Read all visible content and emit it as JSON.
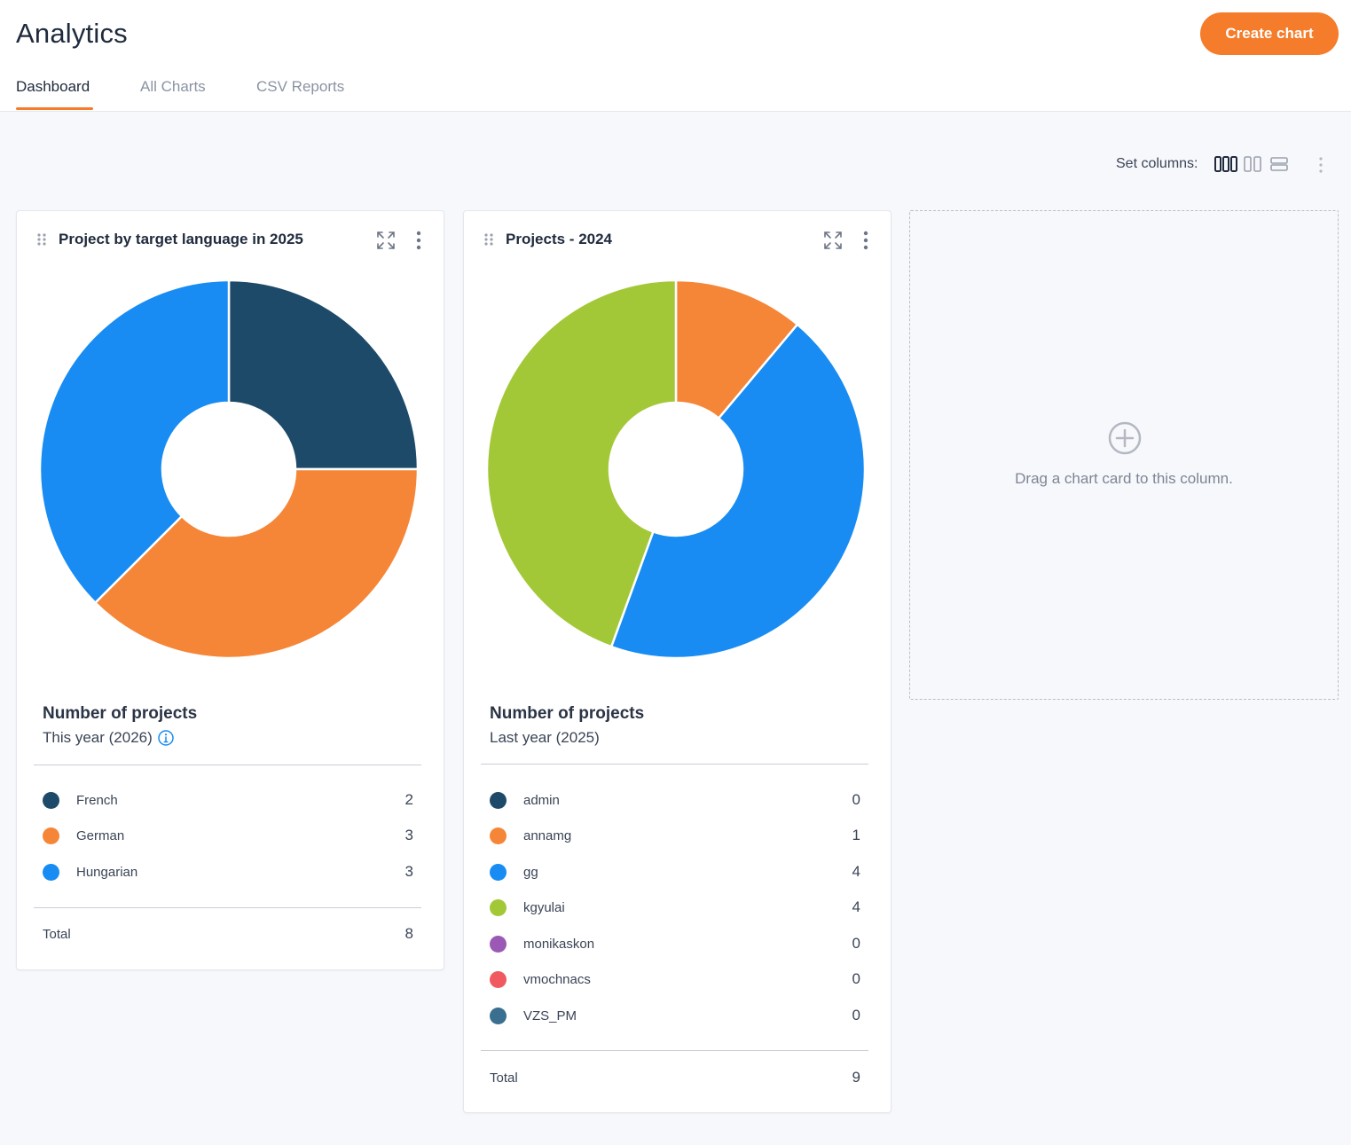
{
  "header": {
    "title": "Analytics",
    "create_button": "Create chart",
    "tabs": [
      {
        "label": "Dashboard",
        "active": true
      },
      {
        "label": "All Charts",
        "active": false
      },
      {
        "label": "CSV Reports",
        "active": false
      }
    ]
  },
  "toolbar": {
    "set_columns_label": "Set columns:",
    "column_options": [
      "three-columns-icon",
      "two-columns-icon",
      "one-column-icon"
    ],
    "selected_columns": 3
  },
  "colors": {
    "accent": "#f47c2a",
    "navy": "#1d4a69",
    "orange": "#f58638",
    "blue": "#188cf2",
    "green": "#a3c837",
    "purple": "#9b59b6",
    "red": "#f0595f",
    "teal": "#3a6f8f"
  },
  "cards": [
    {
      "title": "Project by target language in 2025",
      "summary_title": "Number of projects",
      "summary_subtitle": "This year (2026)",
      "has_info": true,
      "total_label": "Total",
      "total": "8"
    },
    {
      "title": "Projects - 2024",
      "summary_title": "Number of projects",
      "summary_subtitle": "Last year (2025)",
      "has_info": false,
      "total_label": "Total",
      "total": "9"
    }
  ],
  "chart_data": [
    {
      "type": "pie",
      "donut": true,
      "categories": [
        "French",
        "German",
        "Hungarian"
      ],
      "values": [
        2,
        3,
        3
      ],
      "colors": [
        "#1d4a69",
        "#f58638",
        "#188cf2"
      ],
      "title": "Project by target language in 2025"
    },
    {
      "type": "pie",
      "donut": true,
      "categories": [
        "admin",
        "annamg",
        "gg",
        "kgyulai",
        "monikaskon",
        "vmochnacs",
        "VZS_PM"
      ],
      "values": [
        0,
        1,
        4,
        4,
        0,
        0,
        0
      ],
      "colors": [
        "#1d4a69",
        "#f58638",
        "#188cf2",
        "#a3c837",
        "#9b59b6",
        "#f0595f",
        "#3a6f8f"
      ],
      "title": "Projects - 2024"
    }
  ],
  "dropzone": {
    "text": "Drag a chart card to this column."
  }
}
